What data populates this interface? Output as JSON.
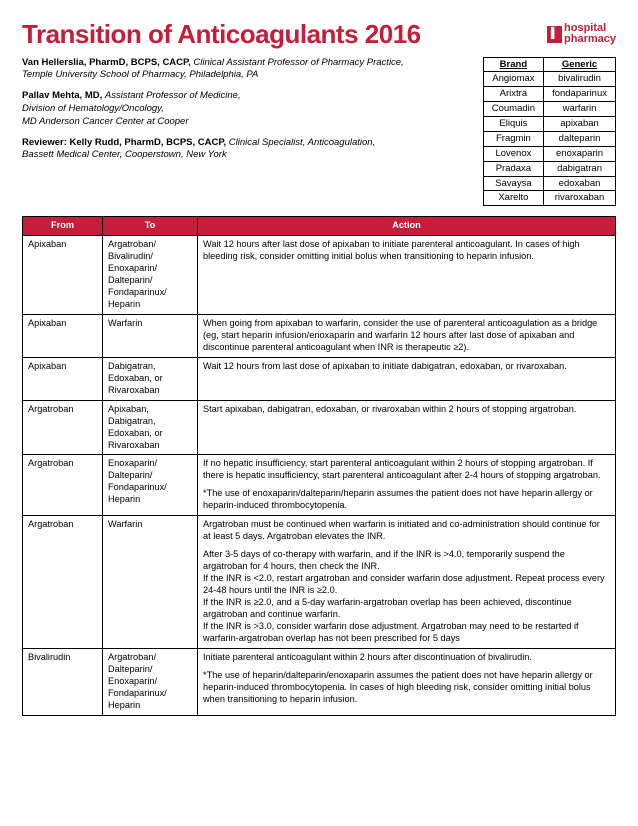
{
  "title": "Transition of Anticoagulants 2016",
  "logo": {
    "word1": "hospital",
    "word2": "pharmacy"
  },
  "authors": [
    {
      "name": "Van Hellerslia, PharmD, BCPS, CACP,",
      "role": "Clinical Assistant Professor of Pharmacy Practice,",
      "affil": "Temple University School of Pharmacy, Philadelphia, PA"
    },
    {
      "name": "Pallav Mehta, MD,",
      "role": "Assistant Professor of Medicine,",
      "affil": "Division of Hematology/Oncology,\nMD Anderson Cancer Center at Cooper"
    },
    {
      "name": "Reviewer: Kelly Rudd, PharmD, BCPS, CACP,",
      "role": "Clinical Specialist, Anticoagulation,",
      "affil": "Bassett Medical Center, Cooperstown, New York"
    }
  ],
  "brand_table": {
    "headers": [
      "Brand",
      "Generic"
    ],
    "rows": [
      [
        "Angiomax",
        "bivalirudin"
      ],
      [
        "Arixtra",
        "fondaparinux"
      ],
      [
        "Coumadin",
        "warfarin"
      ],
      [
        "Eliquis",
        "apixaban"
      ],
      [
        "Fragmin",
        "dalteparin"
      ],
      [
        "Lovenox",
        "enoxaparin"
      ],
      [
        "Pradaxa",
        "dabigatran"
      ],
      [
        "Savaysa",
        "edoxaban"
      ],
      [
        "Xarelto",
        "rivaroxaban"
      ]
    ]
  },
  "main_table": {
    "headers": [
      "From",
      "To",
      "Action"
    ],
    "rows": [
      {
        "from": "Apixaban",
        "to": "Argatroban/\nBivalirudin/\nEnoxaparin/\nDalteparin/\nFondaparinux/\nHeparin",
        "action": [
          "Wait 12 hours after last dose of apixaban to initiate parenteral anticoagulant. In cases of high bleeding risk, consider omitting initial bolus when transitioning to heparin infusion."
        ]
      },
      {
        "from": "Apixaban",
        "to": "Warfarin",
        "action": [
          "When going from apixaban to warfarin, consider the use of parenteral anticoagulation as a bridge (eg, start heparin infusion/enoxaparin and warfarin 12 hours after last dose of apixaban and discontinue parenteral anticoagulant when INR is therapeutic ≥2)."
        ]
      },
      {
        "from": "Apixaban",
        "to": "Dabigatran, Edoxaban, or Rivaroxaban",
        "action": [
          "Wait 12 hours from last dose of apixaban to initiate dabigatran, edoxaban, or rivaroxaban."
        ]
      },
      {
        "from": "Argatroban",
        "to": "Apixaban, Dabigatran, Edoxaban, or Rivaroxaban",
        "action": [
          "Start apixaban, dabigatran, edoxaban, or rivaroxaban within 2 hours of stopping argatroban."
        ]
      },
      {
        "from": "Argatroban",
        "to": "Enoxaparin/\nDalteparin/\nFondaparinux/\nHeparin",
        "action": [
          "If no hepatic insufficiency, start parenteral anticoagulant within 2 hours of stopping argatroban. If there is hepatic insufficiency, start parenteral anticoagulant after 2-4 hours of stopping argatroban.",
          "*The use of enoxaparin/dalteparin/heparin assumes the patient does not have heparin allergy or heparin-induced thrombocytopenia."
        ]
      },
      {
        "from": "Argatroban",
        "to": "Warfarin",
        "action": [
          "Argatroban must be continued when warfarin is initiated and co-administration should continue for at least 5 days. Argatroban elevates the INR.",
          "After 3-5 days of co-therapy with warfarin, and if the INR is >4.0, temporarily suspend the argatroban for 4 hours, then check the INR.\nIf the INR is <2.0, restart argatroban and consider warfarin dose adjustment. Repeat process every 24-48 hours until the INR is ≥2.0.\nIf the INR is ≥2.0, and a 5-day warfarin-argatroban overlap has been achieved, discontinue argatroban and continue warfarin.\nIf the INR is >3.0, consider warfarin dose adjustment. Argatroban may need to be restarted if warfarin-argatroban overlap has not been prescribed for 5 days"
        ]
      },
      {
        "from": "Bivalirudin",
        "to": "Argatroban/\nDalteparin/\nEnoxaparin/\nFondaparinux/\nHeparin",
        "action": [
          "Initiate parenteral anticoagulant within 2 hours after discontinuation of bivalirudin.",
          "*The use of heparin/dalteparin/enoxaparin assumes the patient does not have heparin allergy or heparin-induced thrombocytopenia. In cases of high bleeding risk, consider omitting initial bolus when transitioning to heparin infusion."
        ]
      }
    ]
  },
  "colors": {
    "accent": "#c41e3a",
    "border": "#000000",
    "bg": "#ffffff"
  }
}
